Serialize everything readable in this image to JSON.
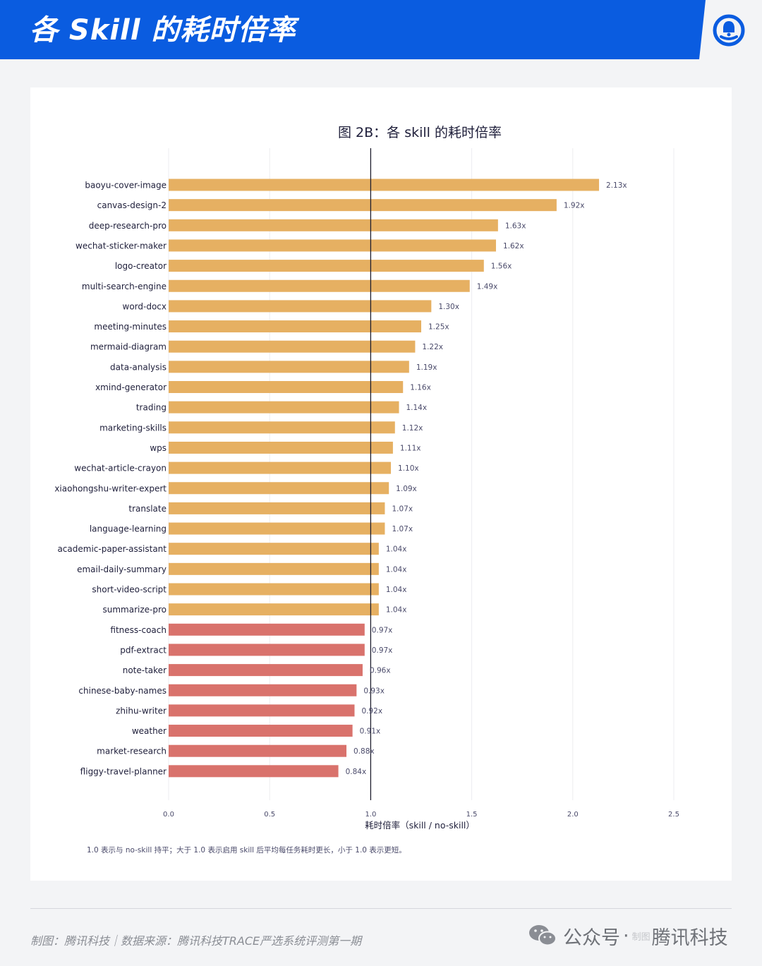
{
  "header": {
    "title": "各 Skill 的耗时倍率"
  },
  "chart_data": {
    "type": "bar",
    "orientation": "horizontal",
    "title": "图 2B：各 skill 的耗时倍率",
    "xlabel": "耗时倍率（skill / no-skill）",
    "ylabel": "",
    "xlim": [
      0,
      2.5
    ],
    "xticks": [
      "0.0",
      "0.5",
      "1.0",
      "1.5",
      "2.0",
      "2.5"
    ],
    "xtick_values": [
      0,
      0.5,
      1.0,
      1.5,
      2.0,
      2.5
    ],
    "reference_line": 1.0,
    "grid": "vertical",
    "colors": {
      "above": "#e6b062",
      "below": "#d9726c"
    },
    "categories": [
      "baoyu-cover-image",
      "canvas-design-2",
      "deep-research-pro",
      "wechat-sticker-maker",
      "logo-creator",
      "multi-search-engine",
      "word-docx",
      "meeting-minutes",
      "mermaid-diagram",
      "data-analysis",
      "xmind-generator",
      "trading",
      "marketing-skills",
      "wps",
      "wechat-article-crayon",
      "xiaohongshu-writer-expert",
      "translate",
      "language-learning",
      "academic-paper-assistant",
      "email-daily-summary",
      "short-video-script",
      "summarize-pro",
      "fitness-coach",
      "pdf-extract",
      "note-taker",
      "chinese-baby-names",
      "zhihu-writer",
      "weather",
      "market-research",
      "fliggy-travel-planner"
    ],
    "values": [
      2.13,
      1.92,
      1.63,
      1.62,
      1.56,
      1.49,
      1.3,
      1.25,
      1.22,
      1.19,
      1.16,
      1.14,
      1.12,
      1.11,
      1.1,
      1.09,
      1.07,
      1.07,
      1.04,
      1.04,
      1.04,
      1.04,
      0.97,
      0.97,
      0.96,
      0.93,
      0.92,
      0.91,
      0.88,
      0.84
    ],
    "labels": [
      "2.13x",
      "1.92x",
      "1.63x",
      "1.62x",
      "1.56x",
      "1.49x",
      "1.30x",
      "1.25x",
      "1.22x",
      "1.19x",
      "1.16x",
      "1.14x",
      "1.12x",
      "1.11x",
      "1.10x",
      "1.09x",
      "1.07x",
      "1.07x",
      "1.04x",
      "1.04x",
      "1.04x",
      "1.04x",
      "0.97x",
      "0.97x",
      "0.96x",
      "0.93x",
      "0.92x",
      "0.91x",
      "0.88x",
      "0.84x"
    ]
  },
  "footnote": "1.0 表示与 no-skill 持平；大于 1.0 表示启用 skill 后平均每任务耗时更长，小于 1.0 表示更短。",
  "footer": {
    "credit": "制图：腾讯科技｜数据来源：腾讯科技TRACE严选系统评测第一期",
    "watermark_main": "公众号",
    "watermark_dot": "·",
    "watermark_sub": "制图",
    "watermark_brand": "腾讯科技"
  }
}
